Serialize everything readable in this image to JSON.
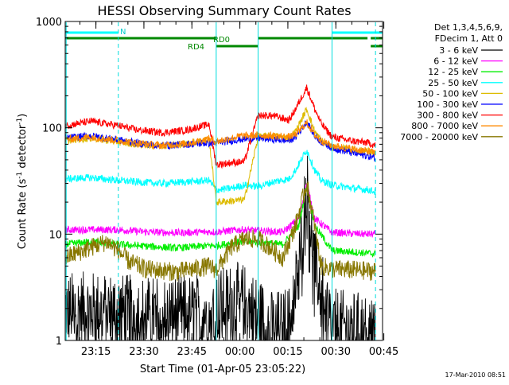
{
  "chart_data": {
    "type": "line",
    "title": "HESSI Observing Summary Count Rates",
    "xlabel": "Start Time (01-Apr-05 23:05:22)",
    "ylabel_main": "Count Rate (s",
    "ylabel_exp1": "-1",
    "ylabel_mid": " detector",
    "ylabel_exp2": "-1",
    "ylabel_end": ")",
    "yscale": "log",
    "ylim": [
      1,
      1000
    ],
    "xlim_minutes": [
      0,
      99.2
    ],
    "x_tick_labels": [
      "23:15",
      "23:30",
      "23:45",
      "00:00",
      "00:15",
      "00:30",
      "00:45"
    ],
    "x_tick_minutes": [
      9.6,
      24.6,
      39.6,
      54.6,
      69.6,
      84.6,
      99.6
    ],
    "y_tick_labels": [
      "1",
      "10",
      "100",
      "1000"
    ],
    "y_tick_values": [
      1,
      10,
      100,
      1000
    ],
    "legend_header_1": "Det 1,3,4,5,6,9,",
    "legend_header_2": "FDecim 1, Att 0",
    "legend_placement": "right",
    "timestamp": "17-Mar-2010 08:51",
    "flag_labels": {
      "N": "N",
      "RD0": "RD0",
      "RD4": "RD4"
    },
    "flags": [
      {
        "name": "N",
        "color": "#00ffff",
        "segments": [
          [
            0,
            16.6
          ],
          [
            83.4,
            99.2
          ]
        ]
      },
      {
        "name": "RD0",
        "color": "#008800",
        "segments": [
          [
            0,
            47.2
          ],
          [
            60.3,
            94.5
          ],
          [
            95.5,
            99.2
          ]
        ]
      },
      {
        "name": "RD4",
        "color": "#008800",
        "segments": [
          [
            47.2,
            60.3
          ],
          [
            95.5,
            99.2
          ]
        ]
      }
    ],
    "gap_markers_minutes": [
      0.3,
      16.6,
      47.2,
      60.3,
      83.4,
      97.0
    ],
    "series": [
      {
        "name": "3 - 6 keV",
        "color": "#000000",
        "points": [
          [
            0,
            2.0
          ],
          [
            16.6,
            2.0
          ],
          [
            18,
            1.9
          ],
          [
            30,
            1.8
          ],
          [
            45,
            2.0
          ],
          [
            47.2,
            2.1
          ],
          [
            52,
            2.4
          ],
          [
            55,
            2.5
          ],
          [
            60.3,
            1.8
          ],
          [
            65,
            1.3
          ],
          [
            70,
            1.5
          ],
          [
            73,
            5
          ],
          [
            75.5,
            32
          ],
          [
            78,
            5
          ],
          [
            83.4,
            1.4
          ],
          [
            90,
            1.3
          ],
          [
            97,
            1.3
          ]
        ]
      },
      {
        "name": "6 - 12 keV",
        "color": "#ff00ff",
        "points": [
          [
            0,
            11
          ],
          [
            16.6,
            11
          ],
          [
            25,
            10.5
          ],
          [
            35,
            10.3
          ],
          [
            45,
            10.5
          ],
          [
            47.2,
            10.5
          ],
          [
            55,
            11
          ],
          [
            60.3,
            10.8
          ],
          [
            68,
            10.4
          ],
          [
            73,
            14
          ],
          [
            75.5,
            30
          ],
          [
            78,
            14
          ],
          [
            83.4,
            10.4
          ],
          [
            90,
            10.1
          ],
          [
            95,
            10
          ],
          [
            97,
            10
          ]
        ]
      },
      {
        "name": "12 - 25 keV",
        "color": "#00ee00",
        "points": [
          [
            0,
            8.0
          ],
          [
            8,
            8.5
          ],
          [
            16.6,
            8.0
          ],
          [
            25,
            7.7
          ],
          [
            35,
            7.4
          ],
          [
            45,
            7.8
          ],
          [
            47.2,
            7.8
          ],
          [
            55,
            8.5
          ],
          [
            60.3,
            8.4
          ],
          [
            68,
            8.0
          ],
          [
            73,
            12
          ],
          [
            75.5,
            29
          ],
          [
            78,
            12
          ],
          [
            83.4,
            7.0
          ],
          [
            90,
            6.8
          ],
          [
            95,
            6.6
          ],
          [
            97,
            6.5
          ]
        ]
      },
      {
        "name": "25 - 50 keV",
        "color": "#00ffff",
        "points": [
          [
            0,
            33
          ],
          [
            8,
            34
          ],
          [
            16.6,
            32
          ],
          [
            22,
            31
          ],
          [
            30,
            30
          ],
          [
            38,
            31
          ],
          [
            45,
            32
          ],
          [
            47.2,
            26
          ],
          [
            52,
            27
          ],
          [
            56,
            29
          ],
          [
            60.3,
            28
          ],
          [
            65,
            31
          ],
          [
            70,
            33
          ],
          [
            72,
            40
          ],
          [
            75.5,
            62
          ],
          [
            78,
            40
          ],
          [
            80,
            32
          ],
          [
            83.4,
            29
          ],
          [
            90,
            27
          ],
          [
            95,
            26
          ],
          [
            97,
            25
          ]
        ]
      },
      {
        "name": "50 - 100 keV",
        "color": "#ddbb00",
        "points": [
          [
            0,
            76
          ],
          [
            8,
            80
          ],
          [
            16.6,
            74
          ],
          [
            22,
            70
          ],
          [
            30,
            68
          ],
          [
            38,
            71
          ],
          [
            45,
            78
          ],
          [
            47.2,
            20
          ],
          [
            52,
            20.5
          ],
          [
            56,
            21
          ],
          [
            60.3,
            82
          ],
          [
            65,
            84
          ],
          [
            70,
            80
          ],
          [
            72,
            92
          ],
          [
            75.5,
            150
          ],
          [
            78,
            92
          ],
          [
            80,
            76
          ],
          [
            83.4,
            66
          ],
          [
            90,
            62
          ],
          [
            95,
            60
          ],
          [
            97,
            57
          ]
        ]
      },
      {
        "name": "100 - 300 keV",
        "color": "#0000ff",
        "points": [
          [
            0,
            80
          ],
          [
            8,
            84
          ],
          [
            16.6,
            77
          ],
          [
            22,
            72
          ],
          [
            30,
            68
          ],
          [
            38,
            70
          ],
          [
            45,
            72
          ],
          [
            47.2,
            72
          ],
          [
            55,
            78
          ],
          [
            60.3,
            80
          ],
          [
            65,
            78
          ],
          [
            70,
            76
          ],
          [
            72,
            82
          ],
          [
            75.5,
            115
          ],
          [
            78,
            84
          ],
          [
            80,
            74
          ],
          [
            83.4,
            65
          ],
          [
            90,
            58
          ],
          [
            95,
            54
          ],
          [
            97,
            52
          ]
        ]
      },
      {
        "name": "300 - 800 keV",
        "color": "#ff0000",
        "points": [
          [
            0,
            105
          ],
          [
            8,
            115
          ],
          [
            16.6,
            105
          ],
          [
            22,
            96
          ],
          [
            30,
            90
          ],
          [
            38,
            95
          ],
          [
            45,
            108
          ],
          [
            47.2,
            45
          ],
          [
            52,
            47
          ],
          [
            56,
            48
          ],
          [
            60.3,
            130
          ],
          [
            65,
            130
          ],
          [
            70,
            118
          ],
          [
            72,
            150
          ],
          [
            75.5,
            240
          ],
          [
            78,
            150
          ],
          [
            80,
            110
          ],
          [
            83.4,
            82
          ],
          [
            90,
            75
          ],
          [
            95,
            72
          ],
          [
            97,
            68
          ]
        ]
      },
      {
        "name": "800 - 7000 keV",
        "color": "#ff8800",
        "points": [
          [
            0,
            78
          ],
          [
            8,
            82
          ],
          [
            16.6,
            76
          ],
          [
            22,
            72
          ],
          [
            30,
            68
          ],
          [
            38,
            71
          ],
          [
            45,
            79
          ],
          [
            47.2,
            74
          ],
          [
            55,
            84
          ],
          [
            60.3,
            85
          ],
          [
            65,
            84
          ],
          [
            70,
            82
          ],
          [
            72,
            86
          ],
          [
            75.5,
            112
          ],
          [
            78,
            86
          ],
          [
            80,
            76
          ],
          [
            83.4,
            68
          ],
          [
            90,
            63
          ],
          [
            95,
            60
          ],
          [
            97,
            58
          ]
        ]
      },
      {
        "name": "7000 - 20000 keV",
        "color": "#887700",
        "points": [
          [
            0,
            6.0
          ],
          [
            8,
            7.5
          ],
          [
            13,
            8.5
          ],
          [
            16.6,
            7.0
          ],
          [
            20,
            5.5
          ],
          [
            25,
            4.7
          ],
          [
            35,
            4.4
          ],
          [
            45,
            5.0
          ],
          [
            47.2,
            4.6
          ],
          [
            52,
            7.5
          ],
          [
            56,
            9.0
          ],
          [
            60.3,
            9.0
          ],
          [
            64,
            7.5
          ],
          [
            68,
            6.0
          ],
          [
            72,
            12
          ],
          [
            75.5,
            30
          ],
          [
            78,
            12
          ],
          [
            80,
            5.0
          ],
          [
            83.4,
            4.7
          ],
          [
            90,
            4.6
          ],
          [
            95,
            4.5
          ],
          [
            97,
            4.5
          ]
        ]
      }
    ]
  }
}
